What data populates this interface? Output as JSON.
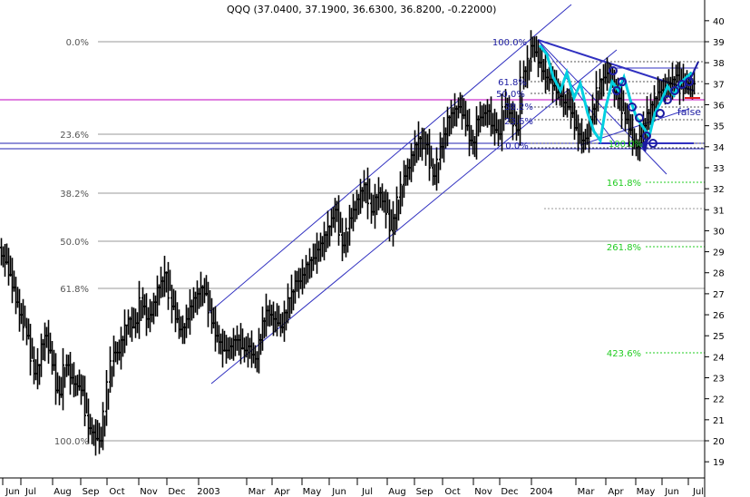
{
  "chart_data": {
    "type": "line",
    "title": "QQQ (37.0400, 37.1900, 36.6300, 36.8200, -0.22000)",
    "ylim": [
      18.5,
      40.8
    ],
    "y_ticks": [
      19,
      20,
      21,
      22,
      23,
      24,
      25,
      26,
      27,
      28,
      29,
      30,
      31,
      32,
      33,
      34,
      35,
      36,
      37,
      38,
      39,
      40
    ],
    "x_labels": [
      "Jun",
      "Jul",
      "Aug",
      "Sep",
      "Oct",
      "Nov",
      "Dec",
      "2003",
      "Mar",
      "Apr",
      "May",
      "Jun",
      "Jul",
      "Aug",
      "Sep",
      "Oct",
      "Nov",
      "Dec",
      "2004",
      "Mar",
      "Apr",
      "May",
      "Jun",
      "Jul"
    ],
    "series": [
      {
        "x": [
          0,
          4,
          8,
          12,
          16,
          20,
          24,
          28,
          32,
          36,
          40,
          44,
          48,
          52,
          56,
          60,
          64,
          68,
          72,
          76,
          80,
          84,
          88,
          92,
          96,
          100,
          104,
          108,
          112,
          116,
          120,
          124,
          128,
          132,
          136,
          140,
          144,
          148,
          152,
          156,
          160,
          164,
          168,
          172,
          176,
          180,
          184,
          188,
          192,
          196,
          200,
          204,
          208,
          212,
          216,
          220,
          224,
          228,
          232,
          236,
          240,
          244,
          248,
          252,
          256,
          260,
          264,
          268,
          272,
          276,
          280,
          284,
          288,
          292,
          296,
          300,
          304,
          308,
          312,
          316,
          320,
          324,
          328,
          332,
          336,
          340,
          344,
          348,
          352,
          356,
          360,
          364,
          368,
          372,
          376,
          380,
          384,
          388,
          392,
          396,
          400,
          404,
          408,
          412,
          416,
          420,
          424,
          428,
          432,
          436,
          440,
          444,
          448,
          452,
          456,
          460,
          464,
          468,
          472,
          476,
          480,
          484,
          488,
          492,
          496,
          500,
          504,
          508,
          512,
          516,
          520,
          524,
          528,
          532,
          536,
          540,
          544,
          548,
          552,
          556,
          560,
          564,
          568,
          572,
          576,
          580,
          584,
          588,
          592,
          596,
          600,
          604,
          608,
          612,
          616,
          620,
          624,
          628,
          632,
          636,
          640,
          644,
          648,
          652,
          656,
          660,
          664,
          668,
          672,
          676,
          680,
          684,
          688,
          692,
          696,
          700,
          704,
          708,
          712,
          716,
          720,
          724,
          728,
          732,
          736,
          740,
          744,
          748,
          752,
          756,
          760,
          764
        ],
        "values": [
          29.2,
          28.8,
          28.5,
          27.9,
          27.3,
          26.6,
          26.0,
          25.4,
          25.0,
          23.8,
          23.2,
          23.6,
          24.6,
          25.0,
          24.3,
          23.6,
          22.4,
          22.2,
          23.6,
          23.6,
          23.0,
          22.7,
          22.6,
          22.4,
          21.2,
          20.6,
          20.4,
          20.1,
          20.0,
          21.4,
          22.8,
          23.8,
          24.2,
          24.2,
          24.8,
          25.5,
          25.8,
          25.4,
          25.6,
          26.8,
          26.4,
          25.8,
          26.0,
          26.6,
          27.3,
          27.6,
          28.0,
          26.8,
          26.4,
          25.8,
          25.3,
          25.4,
          25.8,
          26.4,
          26.8,
          27.0,
          27.3,
          27.0,
          26.1,
          25.6,
          25.0,
          24.7,
          24.3,
          24.3,
          24.5,
          24.8,
          24.8,
          24.4,
          24.3,
          24.5,
          24.1,
          23.9,
          24.8,
          25.7,
          26.2,
          26.0,
          25.8,
          25.6,
          25.4,
          26.1,
          26.8,
          27.1,
          27.6,
          27.6,
          27.9,
          28.4,
          28.6,
          28.7,
          29.1,
          29.4,
          29.8,
          30.2,
          30.6,
          31.0,
          29.8,
          29.3,
          30.1,
          30.6,
          31.0,
          31.5,
          31.9,
          32.2,
          31.3,
          30.9,
          31.6,
          31.8,
          31.4,
          30.8,
          30.0,
          30.6,
          31.6,
          32.2,
          32.6,
          33.0,
          33.6,
          34.1,
          34.4,
          33.9,
          34.1,
          33.0,
          32.6,
          33.4,
          34.0,
          34.6,
          35.4,
          35.6,
          35.8,
          35.9,
          35.5,
          35.0,
          34.3,
          34.2,
          35.3,
          35.4,
          35.6,
          35.7,
          35.0,
          34.8,
          34.6,
          35.9,
          36.0,
          35.6,
          35.0,
          34.8,
          37.3,
          37.6,
          38.2,
          38.8,
          38.5,
          38.0,
          37.6,
          37.3,
          37.2,
          36.9,
          36.6,
          36.4,
          36.1,
          35.9,
          35.6,
          34.9,
          34.6,
          34.3,
          34.4,
          35.3,
          35.8,
          36.8,
          37.2,
          37.3,
          37.5,
          37.1,
          36.6,
          36.3,
          35.6,
          35.3,
          34.8,
          34.2,
          34.0,
          34.5,
          35.0,
          35.6,
          36.0,
          36.3,
          36.6,
          36.7,
          36.9,
          37.0,
          37.2,
          37.4,
          36.8,
          37.2,
          37.0,
          37.0
        ]
      }
    ],
    "fib_left": [
      "0.0%",
      "23.6%",
      "38.2%",
      "50.0%",
      "61.8%",
      "100.0%"
    ],
    "fib_right_top": [
      "100.0%",
      "61.8%",
      "50.0%",
      "38.2%",
      "23.6%",
      "0.0%",
      "100.0%"
    ],
    "fib_extensions": [
      "161.8%",
      "261.8%",
      "423.6%"
    ],
    "annotations": [
      "2",
      "false"
    ]
  }
}
